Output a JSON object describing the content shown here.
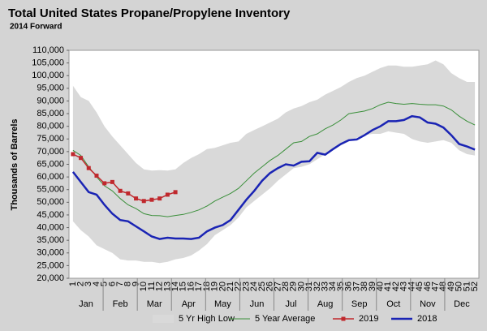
{
  "chart_data": {
    "type": "line",
    "title": "Total United States Propane/Propylene Inventory",
    "subtitle": "2014 Forward",
    "y_label": "Thousands of Barrels",
    "categories": [
      1,
      2,
      3,
      4,
      5,
      6,
      7,
      8,
      9,
      10,
      11,
      12,
      13,
      14,
      15,
      16,
      17,
      18,
      19,
      20,
      21,
      22,
      23,
      24,
      25,
      26,
      27,
      28,
      29,
      30,
      31,
      32,
      33,
      34,
      35,
      36,
      37,
      38,
      39,
      40,
      41,
      42,
      43,
      44,
      45,
      46,
      47,
      48,
      49,
      50,
      51,
      52
    ],
    "months": [
      "Jan",
      "Feb",
      "Mar",
      "Apr",
      "May",
      "Jun",
      "Jul",
      "Aug",
      "Sep",
      "Oct",
      "Nov",
      "Dec"
    ],
    "ylim": [
      20000,
      110000
    ],
    "yticks": [
      {
        "value": 20000,
        "label": "20,000"
      },
      {
        "value": 25000,
        "label": "25,000"
      },
      {
        "value": 30000,
        "label": "30,000"
      },
      {
        "value": 35000,
        "label": "35,000"
      },
      {
        "value": 40000,
        "label": "40,000"
      },
      {
        "value": 45000,
        "label": "45,000"
      },
      {
        "value": 50000,
        "label": "50,000"
      },
      {
        "value": 55000,
        "label": "55,000"
      },
      {
        "value": 60000,
        "label": "60,000"
      },
      {
        "value": 65000,
        "label": "65,000"
      },
      {
        "value": 70000,
        "label": "70,000"
      },
      {
        "value": 75000,
        "label": "75,000"
      },
      {
        "value": 80000,
        "label": "80,000"
      },
      {
        "value": 85000,
        "label": "85,000"
      },
      {
        "value": 90000,
        "label": "90,000"
      },
      {
        "value": 95000,
        "label": "95,000"
      },
      {
        "value": 100000,
        "label": "100,000"
      },
      {
        "value": 105000,
        "label": "105,000"
      },
      {
        "value": 110000,
        "label": "110,000"
      }
    ],
    "grid": false,
    "legend": "bottom",
    "series": [
      {
        "name": "5 Yr High Low",
        "kind": "band",
        "color": "#d9d9d9",
        "high": [
          96000,
          91500,
          90000,
          85500,
          80000,
          76000,
          72500,
          69000,
          65500,
          63000,
          62500,
          62700,
          62500,
          63000,
          65500,
          67500,
          69000,
          71000,
          71500,
          72500,
          73500,
          74000,
          77000,
          78500,
          80000,
          81500,
          83000,
          85500,
          87000,
          88000,
          89500,
          90500,
          92500,
          94000,
          95500,
          97500,
          99000,
          100000,
          101500,
          103000,
          104000,
          104000,
          103500,
          103500,
          104000,
          104500,
          106000,
          104500,
          101000,
          99000,
          97500,
          97500
        ],
        "low": [
          42500,
          39000,
          36500,
          33000,
          31500,
          30000,
          27500,
          27000,
          27000,
          26500,
          26500,
          26000,
          26500,
          27500,
          28000,
          29000,
          31000,
          33500,
          37000,
          39000,
          41000,
          44000,
          48000,
          50500,
          53000,
          55500,
          58500,
          61000,
          63500,
          64000,
          65000,
          67000,
          69000,
          70500,
          72500,
          74000,
          75500,
          76500,
          77000,
          77000,
          78000,
          77500,
          77000,
          75000,
          74000,
          73500,
          74000,
          74500,
          73500,
          70500,
          69000,
          68500
        ]
      },
      {
        "name": "5 Year Average",
        "kind": "line",
        "color": "#3a8f3a",
        "width": 1,
        "values": [
          70500,
          68500,
          64000,
          60000,
          56500,
          54500,
          51500,
          49000,
          47500,
          45500,
          44800,
          44700,
          44300,
          44800,
          45200,
          46000,
          47000,
          48500,
          50500,
          52000,
          53500,
          55500,
          58500,
          61500,
          64000,
          66500,
          68500,
          71000,
          73500,
          74000,
          76000,
          77000,
          79000,
          80500,
          82500,
          85000,
          85500,
          86000,
          87000,
          88500,
          89500,
          89000,
          88700,
          89000,
          88700,
          88500,
          88500,
          88000,
          86500,
          84000,
          82000,
          80500
        ]
      },
      {
        "name": "2019",
        "kind": "marker-line",
        "color": "#c0282d",
        "width": 1.5,
        "values": [
          69000,
          67500,
          63500,
          60500,
          57500,
          58000,
          54500,
          53500,
          51500,
          50500,
          51000,
          51500,
          53000,
          54000,
          null,
          null,
          null,
          null,
          null,
          null,
          null,
          null,
          null,
          null,
          null,
          null,
          null,
          null,
          null,
          null,
          null,
          null,
          null,
          null,
          null,
          null,
          null,
          null,
          null,
          null,
          null,
          null,
          null,
          null,
          null,
          null,
          null,
          null,
          null,
          null,
          null,
          null
        ]
      },
      {
        "name": "2018",
        "kind": "line",
        "color": "#1a24b4",
        "width": 2.5,
        "values": [
          62000,
          58000,
          54000,
          53000,
          49000,
          45500,
          43000,
          42500,
          40500,
          38500,
          36500,
          35500,
          36000,
          35700,
          35700,
          35500,
          36000,
          38500,
          40000,
          41000,
          43000,
          47000,
          51000,
          54500,
          58500,
          61500,
          63500,
          65000,
          64500,
          66000,
          66200,
          69500,
          68800,
          71000,
          73000,
          74500,
          74800,
          76500,
          78500,
          80000,
          82000,
          82000,
          82500,
          84000,
          83500,
          81500,
          81000,
          79500,
          76500,
          73000,
          72000,
          70800
        ]
      }
    ]
  }
}
